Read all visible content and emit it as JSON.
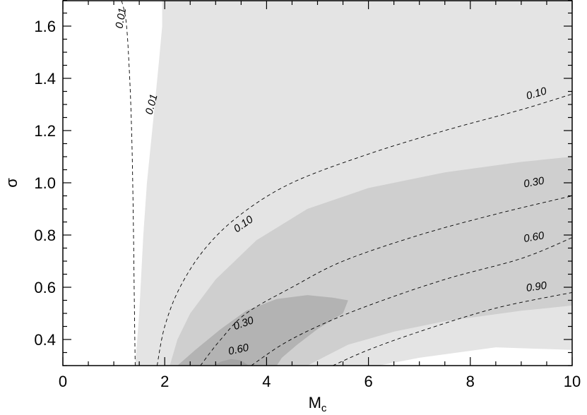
{
  "chart_data": {
    "type": "contour",
    "xlabel": "M",
    "xlabel_sub": "c",
    "ylabel": "σ",
    "xlim": [
      0,
      10
    ],
    "ylim": [
      0.3,
      1.7
    ],
    "x_ticks": [
      "0",
      "2",
      "4",
      "6",
      "8",
      "10"
    ],
    "y_ticks": [
      "0.4",
      "0.6",
      "0.8",
      "1.0",
      "1.2",
      "1.4",
      "1.6"
    ],
    "x_minor_step": 0.5,
    "y_minor_step": 0.05,
    "filled_regions": [
      {
        "level": "lightest",
        "color": "#e4e4e4",
        "points": [
          [
            1.42,
            0.3
          ],
          [
            1.5,
            0.5
          ],
          [
            1.58,
            0.8
          ],
          [
            1.65,
            1.0
          ],
          [
            1.78,
            1.25
          ],
          [
            1.88,
            1.45
          ],
          [
            1.95,
            1.6
          ],
          [
            1.95,
            1.7
          ],
          [
            10,
            1.7
          ],
          [
            10,
            0.36
          ],
          [
            8.5,
            0.37
          ],
          [
            7,
            0.33
          ],
          [
            6.2,
            0.3
          ]
        ]
      },
      {
        "level": "light",
        "color": "#cfcfcf",
        "points": [
          [
            2.1,
            0.3
          ],
          [
            2.25,
            0.4
          ],
          [
            2.5,
            0.5
          ],
          [
            3.0,
            0.63
          ],
          [
            3.8,
            0.78
          ],
          [
            4.8,
            0.9
          ],
          [
            6.0,
            0.98
          ],
          [
            7.5,
            1.04
          ],
          [
            9.0,
            1.08
          ],
          [
            10,
            1.1
          ],
          [
            10,
            0.53
          ],
          [
            9,
            0.51
          ],
          [
            7.5,
            0.47
          ],
          [
            6.5,
            0.43
          ],
          [
            5.6,
            0.38
          ],
          [
            5.1,
            0.33
          ],
          [
            4.8,
            0.3
          ]
        ]
      },
      {
        "level": "medium",
        "color": "#b3b3b3",
        "points": [
          [
            2.25,
            0.3
          ],
          [
            2.6,
            0.36
          ],
          [
            3.1,
            0.44
          ],
          [
            3.6,
            0.51
          ],
          [
            4.2,
            0.555
          ],
          [
            4.8,
            0.57
          ],
          [
            5.3,
            0.56
          ],
          [
            5.6,
            0.55
          ],
          [
            5.5,
            0.5
          ],
          [
            5.0,
            0.44
          ],
          [
            4.6,
            0.38
          ],
          [
            4.3,
            0.33
          ],
          [
            4.2,
            0.3
          ]
        ]
      },
      {
        "level": "dark",
        "color": "#a3a3a3",
        "points": [
          [
            2.95,
            0.3
          ],
          [
            3.1,
            0.315
          ],
          [
            3.3,
            0.325
          ],
          [
            3.5,
            0.32
          ],
          [
            3.65,
            0.3
          ]
        ]
      }
    ],
    "contour_lines": [
      {
        "label": "0.01",
        "points": [
          [
            1.42,
            0.3
          ],
          [
            1.4,
            0.6
          ],
          [
            1.38,
            0.9
          ],
          [
            1.35,
            1.2
          ],
          [
            1.3,
            1.45
          ],
          [
            1.24,
            1.62
          ],
          [
            1.15,
            1.7
          ]
        ]
      },
      {
        "label": "0.10",
        "points": [
          [
            1.85,
            0.3
          ],
          [
            2.0,
            0.45
          ],
          [
            2.3,
            0.6
          ],
          [
            2.8,
            0.75
          ],
          [
            3.5,
            0.88
          ],
          [
            4.5,
            1.0
          ],
          [
            6.0,
            1.11
          ],
          [
            7.5,
            1.2
          ],
          [
            9.0,
            1.28
          ],
          [
            10,
            1.34
          ]
        ]
      },
      {
        "label": "0.30",
        "points": [
          [
            2.7,
            0.3
          ],
          [
            3.1,
            0.4
          ],
          [
            3.6,
            0.5
          ],
          [
            4.5,
            0.6
          ],
          [
            5.5,
            0.7
          ],
          [
            7.0,
            0.8
          ],
          [
            8.5,
            0.88
          ],
          [
            10,
            0.95
          ]
        ]
      },
      {
        "label": "0.60",
        "points": [
          [
            3.7,
            0.3
          ],
          [
            4.3,
            0.38
          ],
          [
            5.0,
            0.45
          ],
          [
            6.0,
            0.53
          ],
          [
            7.5,
            0.63
          ],
          [
            9.0,
            0.71
          ],
          [
            10,
            0.79
          ]
        ]
      },
      {
        "label": "0.90",
        "points": [
          [
            5.3,
            0.3
          ],
          [
            6.0,
            0.36
          ],
          [
            7.0,
            0.43
          ],
          [
            8.5,
            0.52
          ],
          [
            10,
            0.58
          ]
        ]
      }
    ],
    "contour_labels": [
      {
        "text": "0.01",
        "x": 1.15,
        "y": 1.63,
        "angle": -80
      },
      {
        "text": "0.01",
        "x": 1.75,
        "y": 1.3,
        "angle": -75
      },
      {
        "text": "0.10",
        "x": 9.3,
        "y": 1.34,
        "angle": -16
      },
      {
        "text": "0.10",
        "x": 3.55,
        "y": 0.84,
        "angle": -35
      },
      {
        "text": "0.30",
        "x": 9.25,
        "y": 1.0,
        "angle": -10
      },
      {
        "text": "0.30",
        "x": 3.55,
        "y": 0.46,
        "angle": -20
      },
      {
        "text": "0.60",
        "x": 9.25,
        "y": 0.79,
        "angle": -10
      },
      {
        "text": "0.60",
        "x": 3.45,
        "y": 0.36,
        "angle": -12
      },
      {
        "text": "0.90",
        "x": 9.3,
        "y": 0.6,
        "angle": -8
      }
    ]
  }
}
